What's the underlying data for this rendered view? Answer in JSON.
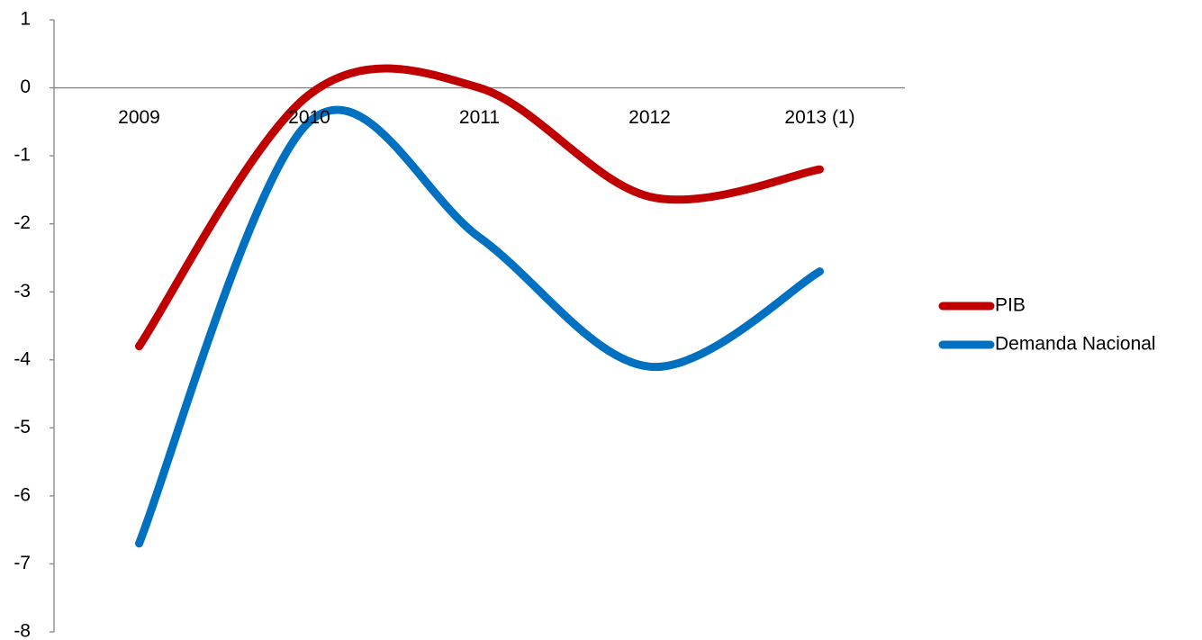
{
  "chart_data": {
    "type": "line",
    "title": "",
    "xlabel": "",
    "ylabel": "",
    "categories": [
      "2009",
      "2010",
      "2011",
      "2012",
      "2013 (1)"
    ],
    "ylim": [
      -8,
      1
    ],
    "yticks": [
      1,
      0,
      -1,
      -2,
      -3,
      -4,
      -5,
      -6,
      -7,
      -8
    ],
    "yticks_labels": [
      "1",
      "0",
      "-1",
      "-2",
      "-3",
      "-4",
      "-5",
      "-6",
      "-7",
      "-8"
    ],
    "grid": false,
    "smooth": true,
    "legend_position": "right",
    "series": [
      {
        "name": "PIB",
        "values": [
          -3.8,
          -0.1,
          0.0,
          -1.6,
          -1.2
        ],
        "color": "#C00000"
      },
      {
        "name": "Demanda Nacional",
        "values": [
          -6.7,
          -0.5,
          -2.2,
          -4.1,
          -2.7
        ],
        "color": "#0070C0"
      }
    ]
  }
}
